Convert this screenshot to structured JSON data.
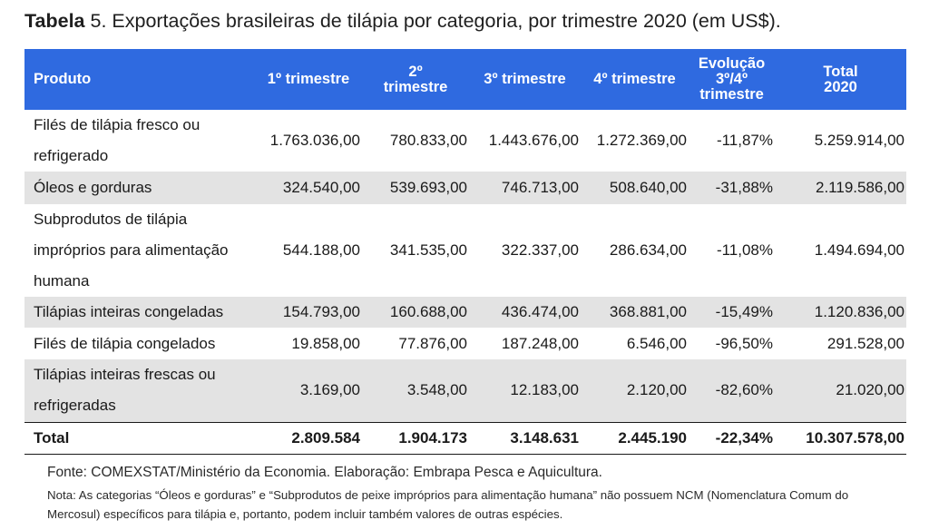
{
  "caption": {
    "label": "Tabela",
    "text": " 5. Exportações brasileiras de tilápia por categoria, por trimestre 2020 (em US$)."
  },
  "table": {
    "headers": [
      "Produto",
      "1º trimestre",
      "2º trimestre",
      "3º trimestre",
      "4º trimestre",
      "Evolução 3º/4º trimestre",
      "Total 2020"
    ],
    "rows": [
      {
        "produto": "Filés de tilápia fresco ou refrigerado",
        "t1": "1.763.036,00",
        "t2": "780.833,00",
        "t3": "1.443.676,00",
        "t4": "1.272.369,00",
        "evolucao": "-11,87%",
        "total": "5.259.914,00"
      },
      {
        "produto": "Óleos e gorduras",
        "t1": "324.540,00",
        "t2": "539.693,00",
        "t3": "746.713,00",
        "t4": "508.640,00",
        "evolucao": "-31,88%",
        "total": "2.119.586,00"
      },
      {
        "produto": "Subprodutos de tilápia impróprios para alimentação humana",
        "t1": "544.188,00",
        "t2": "341.535,00",
        "t3": "322.337,00",
        "t4": "286.634,00",
        "evolucao": "-11,08%",
        "total": "1.494.694,00"
      },
      {
        "produto": "Tilápias inteiras congeladas",
        "t1": "154.793,00",
        "t2": "160.688,00",
        "t3": "436.474,00",
        "t4": "368.881,00",
        "evolucao": "-15,49%",
        "total": "1.120.836,00"
      },
      {
        "produto": "Filés de tilápia congelados",
        "t1": "19.858,00",
        "t2": "77.876,00",
        "t3": "187.248,00",
        "t4": "6.546,00",
        "evolucao": "-96,50%",
        "total": "291.528,00"
      },
      {
        "produto": "Tilápias inteiras frescas ou refrigeradas",
        "t1": "3.169,00",
        "t2": "3.548,00",
        "t3": "12.183,00",
        "t4": "2.120,00",
        "evolucao": "-82,60%",
        "total": "21.020,00"
      }
    ],
    "total_row": {
      "produto": "Total",
      "t1": "2.809.584",
      "t2": "1.904.173",
      "t3": "3.148.631",
      "t4": "2.445.190",
      "evolucao": "-22,34%",
      "total": "10.307.578,00"
    }
  },
  "source": "Fonte: COMEXSTAT/Ministério da Economia. Elaboração: Embrapa Pesca e Aquicultura.",
  "note": "Nota: As categorias “Óleos e gorduras” e “Subprodutos de peixe impróprios para alimentação humana” não possuem NCM (Nomenclatura Comum do Mercosul) específicos para tilápia e, portanto, podem incluir também valores de outras espécies.",
  "colors": {
    "header_bg": "#2f6ae0",
    "row_shade": "#e3e3e3"
  }
}
